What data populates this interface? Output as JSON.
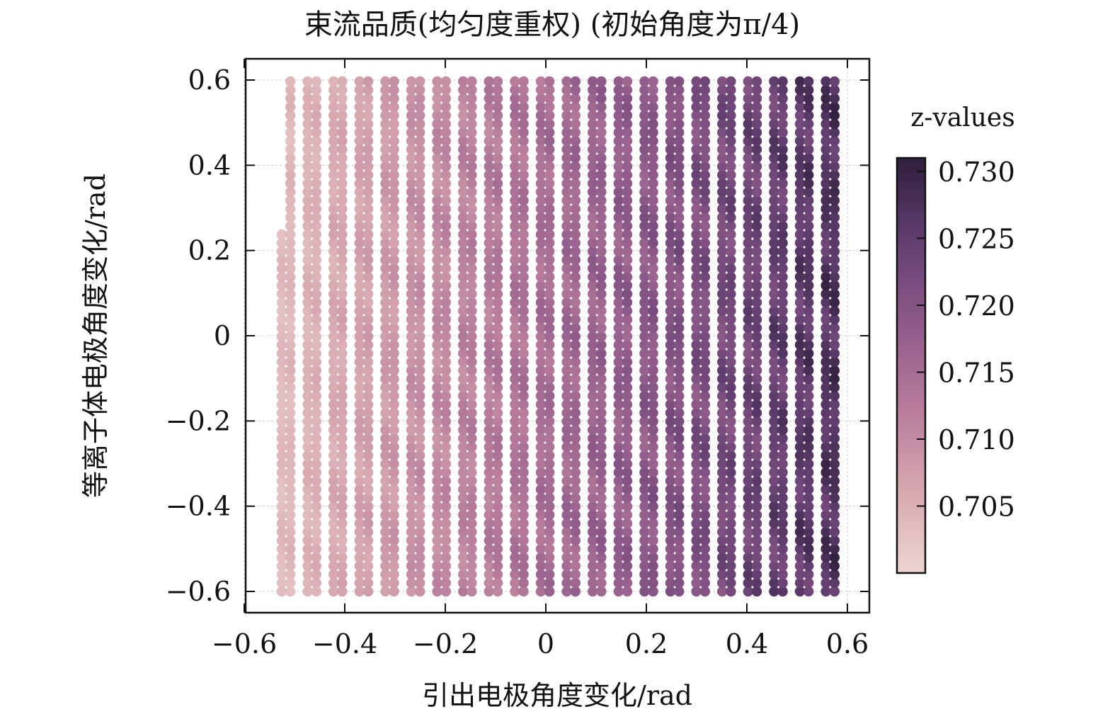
{
  "chart_data": {
    "type": "scatter",
    "title": "束流品质(均匀度重权)    (初始角度为π/4)",
    "xlabel": "引出电极角度变化/rad",
    "ylabel": "等离子体电极角度变化/rad",
    "xlim": [
      -0.6,
      0.6
    ],
    "ylim": [
      -0.6,
      0.6
    ],
    "x_ticks": [
      -0.6,
      -0.4,
      -0.2,
      0,
      0.2,
      0.4,
      0.6
    ],
    "x_tick_labels": [
      "−0.6",
      "−0.4",
      "−0.2",
      "0",
      "0.2",
      "0.4",
      "0.6"
    ],
    "y_ticks": [
      -0.6,
      -0.4,
      -0.2,
      0,
      0.2,
      0.4,
      0.6
    ],
    "y_tick_labels": [
      "−0.6",
      "−0.4",
      "−0.2",
      "0",
      "0.2",
      "0.4",
      "0.6"
    ],
    "grid": true,
    "colorbar": {
      "title": "z-values",
      "range": [
        0.7,
        0.731
      ],
      "ticks": [
        0.705,
        0.71,
        0.715,
        0.72,
        0.725,
        0.73
      ],
      "tick_labels": [
        "0.705",
        "0.710",
        "0.715",
        "0.720",
        "0.725",
        "0.730"
      ],
      "colormap_stops": [
        "#ecd5d1",
        "#d7a8b0",
        "#b67b9a",
        "#8e5a8a",
        "#623f70",
        "#2e1e3c"
      ]
    },
    "data_description": "Dense scatter field: x from −0.6 to 0.6, y from −0.6 to 0.6; values rise from ~0.701 on the left to ~0.729 toward the right, with diagonal striped bands.",
    "z_trend": {
      "x_at_min": -0.6,
      "z_min": 0.701,
      "x_at_max": 0.6,
      "z_max": 0.729
    }
  }
}
